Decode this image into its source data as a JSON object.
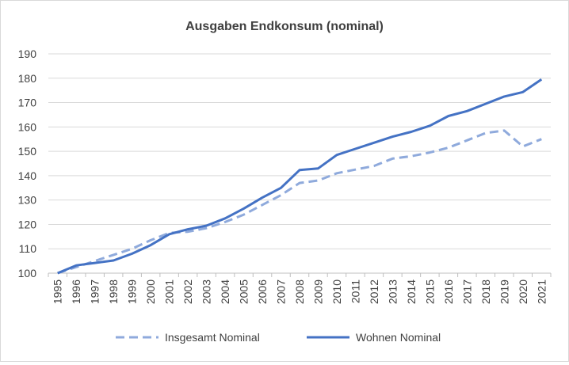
{
  "chart_data": {
    "type": "line",
    "title": "Ausgaben Endkonsum (nominal)",
    "xlabel": "",
    "ylabel": "",
    "ylim": [
      100,
      190
    ],
    "yticks": [
      100,
      110,
      120,
      130,
      140,
      150,
      160,
      170,
      180,
      190
    ],
    "grid": true,
    "legend": "bottom",
    "x": [
      "1995",
      "1996",
      "1997",
      "1998",
      "1999",
      "2000",
      "2001",
      "2002",
      "2003",
      "2004",
      "2005",
      "2006",
      "2007",
      "2008",
      "2009",
      "2010",
      "2011",
      "2012",
      "2013",
      "2014",
      "2015",
      "2016",
      "2017",
      "2018",
      "2019",
      "2020",
      "2021"
    ],
    "series": [
      {
        "name": "Insgesamt Nominal",
        "style": "dashed",
        "color": "#8faadc",
        "values": [
          100.0,
          102.5,
          105.0,
          107.5,
          110.0,
          113.5,
          116.5,
          117.0,
          118.5,
          121.0,
          124.0,
          128.0,
          132.0,
          137.0,
          138.0,
          141.0,
          142.5,
          144.0,
          147.0,
          148.0,
          149.5,
          151.5,
          154.5,
          157.5,
          158.5,
          152.0,
          155.0
        ]
      },
      {
        "name": "Wohnen Nominal",
        "style": "solid",
        "color": "#4472c4",
        "values": [
          100.0,
          103.2,
          104.2,
          105.2,
          108.0,
          111.5,
          116.0,
          118.0,
          119.5,
          122.5,
          126.5,
          131.0,
          135.0,
          142.3,
          143.0,
          148.5,
          151.0,
          153.5,
          156.0,
          158.0,
          160.5,
          164.5,
          166.5,
          169.5,
          172.5,
          174.3,
          179.5
        ]
      }
    ]
  }
}
